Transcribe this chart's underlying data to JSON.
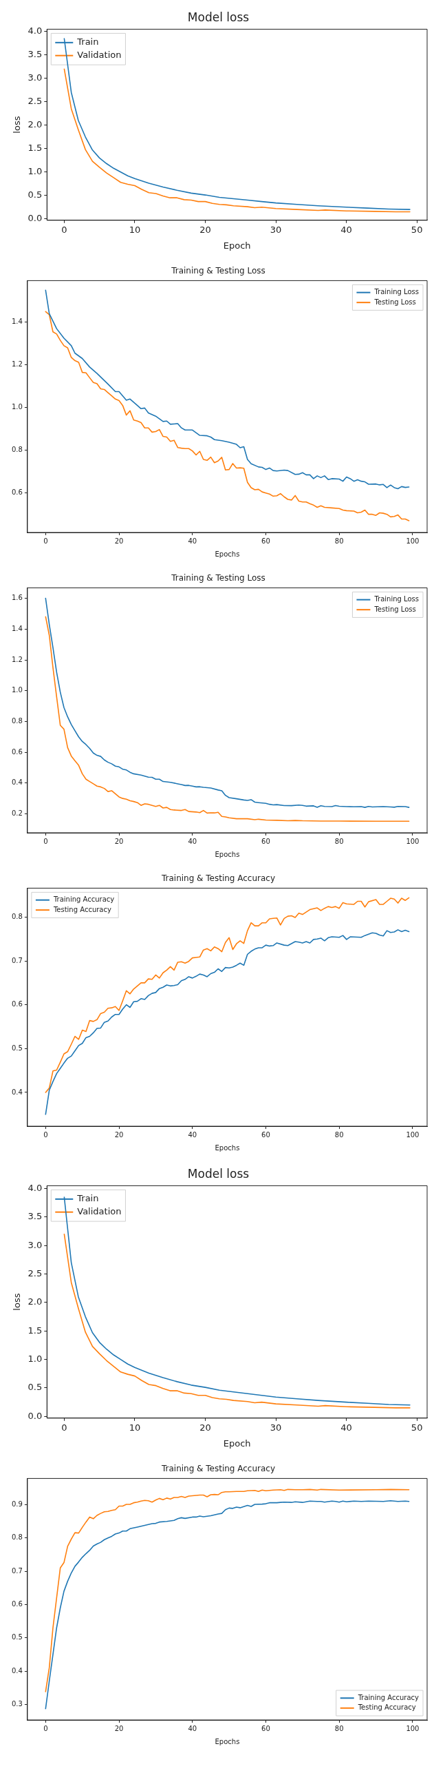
{
  "chart_data": [
    {
      "type": "line",
      "title": "Model loss",
      "xlabel": "Epoch",
      "ylabel": "loss",
      "xlim": [
        -2.45,
        51.45
      ],
      "ylim": [
        -0.03,
        4.05
      ],
      "xticks": [
        0,
        10,
        20,
        30,
        40,
        50
      ],
      "yticks": [
        {
          "value": 0,
          "label": "0.0"
        },
        0.5,
        {
          "value": 1,
          "label": "1.0"
        },
        1.5,
        {
          "value": 2,
          "label": "2.0"
        },
        2.5,
        {
          "value": 3,
          "label": "3.0"
        },
        3.5,
        {
          "value": 4,
          "label": "4.0"
        }
      ],
      "legend": "top left",
      "grid": false,
      "series": [
        {
          "name": "Train",
          "color": "#1f77b4",
          "x": [
            0,
            1,
            2,
            3,
            4,
            5,
            6,
            7,
            8,
            9,
            10,
            12,
            14,
            16,
            18,
            20,
            22,
            24,
            26,
            28,
            30,
            33,
            36,
            40,
            43,
            46,
            49
          ],
          "values": [
            3.85,
            2.7,
            2.1,
            1.75,
            1.47,
            1.3,
            1.18,
            1.08,
            1.0,
            0.92,
            0.86,
            0.76,
            0.68,
            0.61,
            0.55,
            0.51,
            0.46,
            0.43,
            0.4,
            0.37,
            0.34,
            0.31,
            0.28,
            0.25,
            0.23,
            0.21,
            0.2
          ]
        },
        {
          "name": "Validation",
          "color": "#ff7f0e",
          "x": [
            0,
            1,
            2,
            3,
            4,
            5,
            6,
            7,
            8,
            9,
            10,
            11,
            12,
            13,
            14,
            15,
            16,
            17,
            18,
            19,
            20,
            21,
            22,
            23,
            24,
            26,
            27,
            28,
            30,
            33,
            36,
            37,
            40,
            44,
            47,
            49
          ],
          "values": [
            3.2,
            2.35,
            1.9,
            1.48,
            1.23,
            1.1,
            0.98,
            0.88,
            0.78,
            0.74,
            0.71,
            0.63,
            0.56,
            0.54,
            0.49,
            0.45,
            0.45,
            0.41,
            0.4,
            0.37,
            0.37,
            0.33,
            0.31,
            0.3,
            0.28,
            0.26,
            0.24,
            0.25,
            0.22,
            0.2,
            0.18,
            0.19,
            0.17,
            0.16,
            0.15,
            0.15
          ]
        }
      ]
    },
    {
      "type": "line",
      "title": "Training & Testing Loss",
      "xlabel": "Epochs",
      "xlim": [
        -4.95,
        103.95
      ],
      "ylim": [
        0.415,
        1.595
      ],
      "xticks": [
        0,
        20,
        40,
        60,
        80,
        100
      ],
      "yticks": [
        0.6,
        0.8,
        {
          "value": 1,
          "label": "1.0"
        },
        1.2,
        1.4
      ],
      "legend": "top right",
      "grid": false,
      "series": [
        {
          "name": "Training Loss",
          "color": "#1f77b4",
          "x": [
            0,
            1,
            3,
            5,
            7,
            8,
            10,
            12,
            14,
            17,
            19,
            20,
            22,
            23,
            25,
            26,
            27,
            28,
            30,
            32,
            33,
            34,
            36,
            37,
            38,
            40,
            42,
            44,
            45,
            46,
            48,
            50,
            52,
            53,
            54,
            55,
            56,
            58,
            59,
            60,
            61,
            62,
            63,
            65,
            66,
            68,
            69,
            70,
            71,
            72,
            73,
            74,
            75,
            76,
            77,
            78,
            80,
            81,
            82,
            83,
            84,
            85,
            86,
            87,
            88,
            90,
            91,
            92,
            93,
            94,
            95,
            96,
            97,
            98,
            99
          ],
          "values": [
            1.55,
            1.44,
            1.37,
            1.325,
            1.29,
            1.255,
            1.23,
            1.19,
            1.16,
            1.11,
            1.075,
            1.075,
            1.035,
            1.04,
            1.01,
            0.995,
            0.998,
            0.975,
            0.96,
            0.935,
            0.937,
            0.922,
            0.925,
            0.905,
            0.895,
            0.895,
            0.87,
            0.868,
            0.862,
            0.85,
            0.845,
            0.838,
            0.828,
            0.812,
            0.817,
            0.757,
            0.737,
            0.722,
            0.72,
            0.71,
            0.717,
            0.705,
            0.703,
            0.707,
            0.705,
            0.687,
            0.688,
            0.695,
            0.685,
            0.685,
            0.667,
            0.68,
            0.672,
            0.68,
            0.663,
            0.667,
            0.665,
            0.655,
            0.675,
            0.667,
            0.655,
            0.662,
            0.655,
            0.652,
            0.641,
            0.642,
            0.638,
            0.64,
            0.625,
            0.637,
            0.625,
            0.62,
            0.63,
            0.626,
            0.628
          ]
        },
        {
          "name": "Testing Loss",
          "color": "#ff7f0e",
          "x": [
            0,
            1,
            2,
            3,
            4,
            5,
            6,
            7,
            8,
            9,
            10,
            11,
            12,
            13,
            14,
            15,
            16,
            17,
            18,
            19,
            20,
            21,
            22,
            23,
            24,
            25,
            26,
            27,
            28,
            29,
            30,
            31,
            32,
            33,
            34,
            35,
            36,
            37,
            38,
            39,
            40,
            41,
            42,
            43,
            44,
            45,
            46,
            47,
            48,
            49,
            50,
            51,
            52,
            53,
            54,
            55,
            56,
            57,
            58,
            59,
            60,
            61,
            62,
            63,
            64,
            65,
            66,
            67,
            68,
            69,
            70,
            71,
            72,
            73,
            74,
            75,
            76,
            78,
            80,
            81,
            82,
            84,
            85,
            86,
            87,
            88,
            89,
            90,
            91,
            92,
            93,
            94,
            95,
            96,
            97,
            98,
            99
          ],
          "values": [
            1.45,
            1.435,
            1.355,
            1.345,
            1.315,
            1.29,
            1.28,
            1.235,
            1.22,
            1.212,
            1.165,
            1.163,
            1.14,
            1.118,
            1.112,
            1.088,
            1.085,
            1.07,
            1.055,
            1.04,
            1.033,
            1.01,
            0.965,
            0.985,
            0.942,
            0.937,
            0.93,
            0.905,
            0.905,
            0.885,
            0.888,
            0.897,
            0.865,
            0.862,
            0.842,
            0.847,
            0.813,
            0.81,
            0.808,
            0.808,
            0.797,
            0.778,
            0.795,
            0.757,
            0.753,
            0.768,
            0.742,
            0.75,
            0.767,
            0.708,
            0.71,
            0.738,
            0.717,
            0.718,
            0.716,
            0.65,
            0.625,
            0.615,
            0.617,
            0.605,
            0.6,
            0.595,
            0.585,
            0.587,
            0.597,
            0.582,
            0.57,
            0.567,
            0.588,
            0.562,
            0.558,
            0.558,
            0.55,
            0.543,
            0.533,
            0.54,
            0.533,
            0.53,
            0.527,
            0.52,
            0.517,
            0.515,
            0.507,
            0.51,
            0.52,
            0.5,
            0.5,
            0.495,
            0.507,
            0.505,
            0.5,
            0.488,
            0.49,
            0.497,
            0.478,
            0.478,
            0.47
          ]
        }
      ]
    },
    {
      "type": "line",
      "title": "Training & Testing Loss",
      "xlabel": "Epochs",
      "xlim": [
        -4.95,
        103.95
      ],
      "ylim": [
        0.077,
        1.668
      ],
      "xticks": [
        0,
        20,
        40,
        60,
        80,
        100
      ],
      "yticks": [
        0.2,
        0.4,
        0.6,
        0.8,
        {
          "value": 1,
          "label": "1.0"
        },
        1.2,
        1.4,
        1.6
      ],
      "legend": "top right",
      "grid": false,
      "series": [
        {
          "name": "Training Loss",
          "color": "#1f77b4",
          "x": [
            0,
            1,
            2,
            3,
            4,
            5,
            6,
            7,
            8,
            9,
            10,
            11,
            12,
            13,
            14,
            15,
            16,
            17,
            18,
            19,
            20,
            21,
            22,
            23,
            24,
            26,
            27,
            28,
            29,
            30,
            31,
            32,
            34,
            36,
            37,
            38,
            39,
            40,
            41,
            42,
            43,
            45,
            47,
            48,
            49,
            50,
            52,
            54,
            55,
            56,
            57,
            58,
            60,
            61,
            62,
            63,
            65,
            67,
            69,
            70,
            71,
            73,
            74,
            75,
            76,
            78,
            79,
            80,
            82,
            84,
            86,
            87,
            88,
            89,
            92,
            94,
            95,
            96,
            98,
            99
          ],
          "values": [
            1.6,
            1.43,
            1.28,
            1.12,
            0.99,
            0.89,
            0.83,
            0.78,
            0.74,
            0.7,
            0.67,
            0.65,
            0.625,
            0.595,
            0.58,
            0.573,
            0.55,
            0.535,
            0.525,
            0.51,
            0.505,
            0.49,
            0.485,
            0.47,
            0.46,
            0.452,
            0.445,
            0.438,
            0.437,
            0.425,
            0.425,
            0.41,
            0.405,
            0.395,
            0.39,
            0.384,
            0.385,
            0.38,
            0.375,
            0.376,
            0.372,
            0.368,
            0.355,
            0.35,
            0.32,
            0.305,
            0.298,
            0.29,
            0.287,
            0.292,
            0.276,
            0.273,
            0.268,
            0.262,
            0.258,
            0.26,
            0.254,
            0.253,
            0.257,
            0.255,
            0.25,
            0.252,
            0.243,
            0.253,
            0.248,
            0.247,
            0.254,
            0.249,
            0.247,
            0.246,
            0.247,
            0.242,
            0.248,
            0.245,
            0.247,
            0.245,
            0.243,
            0.248,
            0.247,
            0.242
          ]
        },
        {
          "name": "Testing Loss",
          "color": "#ff7f0e",
          "x": [
            0,
            1,
            2,
            3,
            4,
            5,
            6,
            7,
            8,
            9,
            10,
            11,
            12,
            13,
            14,
            15,
            16,
            17,
            18,
            19,
            20,
            21,
            22,
            23,
            24,
            25,
            26,
            27,
            28,
            29,
            30,
            31,
            32,
            33,
            34,
            35,
            37,
            38,
            39,
            41,
            42,
            43,
            44,
            45,
            46,
            47,
            48,
            49,
            50,
            52,
            55,
            57,
            58,
            60,
            63,
            66,
            68,
            70,
            75,
            80,
            90,
            99
          ],
          "values": [
            1.48,
            1.36,
            1.15,
            0.96,
            0.775,
            0.75,
            0.63,
            0.575,
            0.545,
            0.515,
            0.46,
            0.425,
            0.41,
            0.395,
            0.38,
            0.375,
            0.365,
            0.345,
            0.35,
            0.33,
            0.31,
            0.3,
            0.295,
            0.285,
            0.28,
            0.273,
            0.255,
            0.265,
            0.262,
            0.255,
            0.248,
            0.255,
            0.238,
            0.242,
            0.228,
            0.225,
            0.222,
            0.228,
            0.215,
            0.212,
            0.208,
            0.222,
            0.205,
            0.207,
            0.206,
            0.21,
            0.183,
            0.18,
            0.174,
            0.168,
            0.168,
            0.162,
            0.165,
            0.16,
            0.158,
            0.155,
            0.157,
            0.155,
            0.153,
            0.153,
            0.152,
            0.152
          ]
        }
      ]
    },
    {
      "type": "line",
      "title": "Training & Testing Accuracy",
      "xlabel": "Epochs",
      "xlim": [
        -4.95,
        103.95
      ],
      "ylim": [
        0.323,
        0.866
      ],
      "xticks": [
        0,
        20,
        40,
        60,
        80,
        100
      ],
      "yticks": [
        0.4,
        0.5,
        0.6,
        0.7,
        0.8
      ],
      "legend": "top left",
      "grid": false,
      "series": [
        {
          "name": "Training Accuracy",
          "color": "#1f77b4",
          "x": [
            0,
            1,
            2,
            3,
            4,
            5,
            6,
            7,
            8,
            9,
            10,
            11,
            12,
            13,
            14,
            15,
            16,
            17,
            18,
            19,
            20,
            21,
            22,
            23,
            24,
            25,
            26,
            27,
            28,
            29,
            30,
            31,
            32,
            33,
            34,
            35,
            36,
            37,
            38,
            39,
            40,
            41,
            42,
            43,
            44,
            45,
            46,
            47,
            48,
            49,
            50,
            51,
            52,
            53,
            54,
            55,
            56,
            57,
            58,
            59,
            60,
            61,
            62,
            63,
            65,
            66,
            68,
            69,
            70,
            71,
            72,
            73,
            74,
            75,
            76,
            77,
            78,
            80,
            81,
            82,
            83,
            86,
            87,
            89,
            90,
            91,
            92,
            93,
            94,
            95,
            96,
            97,
            98,
            99
          ],
          "values": [
            0.35,
            0.405,
            0.425,
            0.443,
            0.455,
            0.467,
            0.478,
            0.483,
            0.495,
            0.507,
            0.512,
            0.525,
            0.528,
            0.536,
            0.546,
            0.547,
            0.56,
            0.563,
            0.572,
            0.578,
            0.578,
            0.59,
            0.6,
            0.594,
            0.607,
            0.608,
            0.614,
            0.612,
            0.621,
            0.626,
            0.628,
            0.637,
            0.64,
            0.645,
            0.643,
            0.644,
            0.646,
            0.655,
            0.658,
            0.664,
            0.661,
            0.665,
            0.67,
            0.668,
            0.664,
            0.671,
            0.674,
            0.682,
            0.676,
            0.685,
            0.684,
            0.686,
            0.69,
            0.695,
            0.69,
            0.715,
            0.722,
            0.727,
            0.73,
            0.73,
            0.736,
            0.734,
            0.735,
            0.741,
            0.736,
            0.735,
            0.744,
            0.743,
            0.741,
            0.744,
            0.741,
            0.749,
            0.75,
            0.752,
            0.746,
            0.753,
            0.755,
            0.754,
            0.758,
            0.749,
            0.755,
            0.754,
            0.758,
            0.764,
            0.763,
            0.759,
            0.757,
            0.769,
            0.765,
            0.766,
            0.771,
            0.767,
            0.77,
            0.767
          ]
        },
        {
          "name": "Testing Accuracy",
          "color": "#ff7f0e",
          "x": [
            0,
            1,
            2,
            3,
            4,
            5,
            6,
            7,
            8,
            9,
            10,
            11,
            12,
            13,
            14,
            15,
            16,
            17,
            18,
            19,
            20,
            21,
            22,
            23,
            24,
            25,
            26,
            27,
            28,
            29,
            30,
            31,
            32,
            33,
            34,
            35,
            36,
            37,
            38,
            39,
            40,
            41,
            42,
            43,
            44,
            45,
            46,
            47,
            48,
            49,
            50,
            51,
            52,
            53,
            54,
            55,
            56,
            57,
            58,
            59,
            60,
            61,
            62,
            63,
            64,
            65,
            66,
            67,
            68,
            69,
            70,
            72,
            74,
            75,
            76,
            77,
            78,
            79,
            80,
            81,
            82,
            84,
            85,
            86,
            87,
            88,
            90,
            91,
            92,
            93,
            94,
            95,
            96,
            97,
            98,
            99
          ],
          "values": [
            0.4,
            0.41,
            0.449,
            0.451,
            0.469,
            0.488,
            0.493,
            0.51,
            0.528,
            0.521,
            0.542,
            0.539,
            0.564,
            0.562,
            0.566,
            0.58,
            0.583,
            0.592,
            0.593,
            0.596,
            0.587,
            0.609,
            0.632,
            0.625,
            0.636,
            0.643,
            0.65,
            0.65,
            0.659,
            0.658,
            0.668,
            0.661,
            0.673,
            0.679,
            0.687,
            0.679,
            0.697,
            0.698,
            0.695,
            0.699,
            0.707,
            0.708,
            0.709,
            0.725,
            0.728,
            0.723,
            0.732,
            0.728,
            0.721,
            0.742,
            0.753,
            0.726,
            0.739,
            0.746,
            0.74,
            0.769,
            0.787,
            0.78,
            0.78,
            0.787,
            0.787,
            0.796,
            0.797,
            0.798,
            0.782,
            0.797,
            0.802,
            0.803,
            0.799,
            0.809,
            0.806,
            0.817,
            0.821,
            0.815,
            0.82,
            0.824,
            0.822,
            0.824,
            0.82,
            0.833,
            0.83,
            0.829,
            0.836,
            0.836,
            0.823,
            0.835,
            0.84,
            0.829,
            0.829,
            0.836,
            0.843,
            0.841,
            0.832,
            0.843,
            0.838,
            0.844
          ]
        }
      ]
    },
    {
      "type": "line",
      "title": "Model loss",
      "xlabel": "Epoch",
      "ylabel": "loss",
      "xlim": [
        -2.45,
        51.45
      ],
      "ylim": [
        -0.03,
        4.05
      ],
      "xticks": [
        0,
        10,
        20,
        30,
        40,
        50
      ],
      "yticks": [
        {
          "value": 0,
          "label": "0.0"
        },
        0.5,
        {
          "value": 1,
          "label": "1.0"
        },
        1.5,
        {
          "value": 2,
          "label": "2.0"
        },
        2.5,
        {
          "value": 3,
          "label": "3.0"
        },
        3.5,
        {
          "value": 4,
          "label": "4.0"
        }
      ],
      "legend": "top left",
      "grid": false,
      "series": [
        {
          "name": "Train",
          "color": "#1f77b4",
          "x": [
            0,
            1,
            2,
            3,
            4,
            5,
            6,
            7,
            8,
            9,
            10,
            12,
            14,
            16,
            18,
            20,
            22,
            24,
            26,
            28,
            30,
            33,
            36,
            40,
            43,
            46,
            49
          ],
          "values": [
            3.85,
            2.7,
            2.1,
            1.75,
            1.47,
            1.3,
            1.18,
            1.08,
            1.0,
            0.92,
            0.86,
            0.76,
            0.68,
            0.61,
            0.55,
            0.51,
            0.46,
            0.43,
            0.4,
            0.37,
            0.34,
            0.31,
            0.28,
            0.25,
            0.23,
            0.21,
            0.2
          ]
        },
        {
          "name": "Validation",
          "color": "#ff7f0e",
          "x": [
            0,
            1,
            2,
            3,
            4,
            5,
            6,
            7,
            8,
            9,
            10,
            11,
            12,
            13,
            14,
            15,
            16,
            17,
            18,
            19,
            20,
            21,
            22,
            23,
            24,
            26,
            27,
            28,
            30,
            33,
            36,
            37,
            40,
            44,
            47,
            49
          ],
          "values": [
            3.2,
            2.35,
            1.9,
            1.48,
            1.23,
            1.1,
            0.98,
            0.88,
            0.78,
            0.74,
            0.71,
            0.63,
            0.56,
            0.54,
            0.49,
            0.45,
            0.45,
            0.41,
            0.4,
            0.37,
            0.37,
            0.33,
            0.31,
            0.3,
            0.28,
            0.26,
            0.24,
            0.25,
            0.22,
            0.2,
            0.18,
            0.19,
            0.17,
            0.16,
            0.15,
            0.15
          ]
        }
      ]
    },
    {
      "type": "line",
      "title": "Training & Testing Accuracy",
      "xlabel": "Epochs",
      "xlim": [
        -4.95,
        103.95
      ],
      "ylim": [
        0.253,
        0.979
      ],
      "xticks": [
        0,
        20,
        40,
        60,
        80,
        100
      ],
      "yticks": [
        0.3,
        0.4,
        0.5,
        0.6,
        0.7,
        0.8,
        0.9
      ],
      "legend": "bottom right",
      "grid": false,
      "series": [
        {
          "name": "Training Accuracy",
          "color": "#1f77b4",
          "x": [
            0,
            1,
            2,
            3,
            4,
            5,
            6,
            7,
            8,
            9,
            10,
            11,
            12,
            13,
            14,
            15,
            16,
            17,
            18,
            19,
            20,
            21,
            22,
            23,
            25,
            27,
            29,
            30,
            31,
            33,
            35,
            36,
            37,
            38,
            40,
            41,
            42,
            43,
            45,
            47,
            48,
            49,
            50,
            51,
            52,
            53,
            55,
            56,
            57,
            59,
            60,
            61,
            63,
            64,
            65,
            67,
            68,
            70,
            72,
            74,
            75,
            76,
            78,
            79,
            80,
            81,
            82,
            84,
            86,
            88,
            92,
            94,
            96,
            98,
            99
          ],
          "values": [
            0.287,
            0.37,
            0.45,
            0.53,
            0.59,
            0.64,
            0.67,
            0.695,
            0.715,
            0.728,
            0.742,
            0.753,
            0.763,
            0.776,
            0.782,
            0.787,
            0.795,
            0.8,
            0.805,
            0.812,
            0.815,
            0.821,
            0.821,
            0.828,
            0.833,
            0.838,
            0.843,
            0.844,
            0.848,
            0.85,
            0.853,
            0.858,
            0.861,
            0.859,
            0.863,
            0.863,
            0.866,
            0.864,
            0.867,
            0.872,
            0.874,
            0.885,
            0.89,
            0.889,
            0.893,
            0.891,
            0.898,
            0.895,
            0.901,
            0.902,
            0.903,
            0.906,
            0.906,
            0.907,
            0.908,
            0.907,
            0.909,
            0.907,
            0.911,
            0.91,
            0.91,
            0.908,
            0.911,
            0.91,
            0.908,
            0.911,
            0.909,
            0.911,
            0.91,
            0.911,
            0.91,
            0.912,
            0.91,
            0.911,
            0.91
          ]
        },
        {
          "name": "Testing Accuracy",
          "color": "#ff7f0e",
          "x": [
            0,
            1,
            2,
            3,
            4,
            5,
            6,
            7,
            8,
            9,
            10,
            11,
            12,
            13,
            14,
            15,
            16,
            17,
            18,
            19,
            20,
            21,
            22,
            23,
            24,
            25,
            26,
            27,
            28,
            29,
            30,
            31,
            32,
            33,
            34,
            35,
            36,
            37,
            38,
            39,
            40,
            41,
            42,
            43,
            44,
            45,
            46,
            47,
            48,
            49,
            50,
            52,
            54,
            55,
            57,
            58,
            59,
            60,
            62,
            64,
            65,
            66,
            68,
            70,
            72,
            74,
            75,
            80,
            90,
            94,
            99
          ],
          "values": [
            0.338,
            0.41,
            0.53,
            0.62,
            0.71,
            0.726,
            0.775,
            0.797,
            0.816,
            0.815,
            0.832,
            0.848,
            0.863,
            0.858,
            0.868,
            0.874,
            0.879,
            0.88,
            0.883,
            0.885,
            0.896,
            0.896,
            0.901,
            0.901,
            0.906,
            0.908,
            0.911,
            0.913,
            0.912,
            0.908,
            0.914,
            0.919,
            0.915,
            0.92,
            0.917,
            0.922,
            0.922,
            0.925,
            0.922,
            0.926,
            0.927,
            0.928,
            0.929,
            0.929,
            0.924,
            0.93,
            0.931,
            0.93,
            0.937,
            0.939,
            0.939,
            0.94,
            0.94,
            0.942,
            0.943,
            0.94,
            0.944,
            0.942,
            0.944,
            0.945,
            0.943,
            0.946,
            0.945,
            0.945,
            0.946,
            0.944,
            0.946,
            0.944,
            0.945,
            0.946,
            0.945
          ]
        }
      ]
    }
  ]
}
